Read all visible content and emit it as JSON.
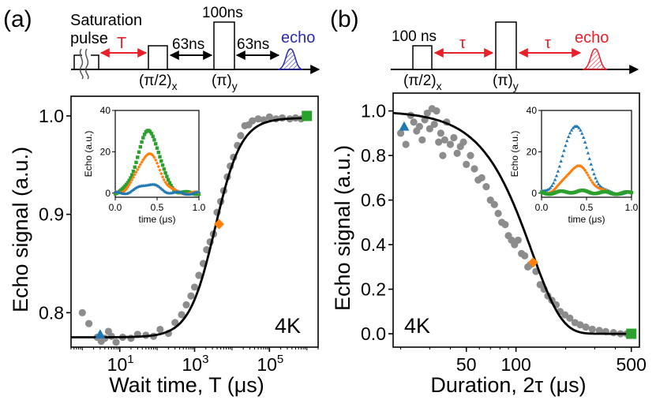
{
  "colors": {
    "data_point": "#8c8c8c",
    "fit_line": "#000000",
    "blue": "#1f77b4",
    "orange": "#ff7f0e",
    "green": "#2ca02c",
    "red": "#e8202a",
    "echo_blue": "#2b2ba8"
  },
  "panel_a": {
    "label": "(a)",
    "diagram": {
      "sat_label_1": "Saturation",
      "sat_label_2": "pulse",
      "T_label": "T",
      "delay_1": "63ns",
      "delay_2": "63ns",
      "pulse_100": "100ns",
      "pi2_label": "(π/2)",
      "pi2_sub": "x",
      "pi_label": "(π)",
      "pi_sub": "y",
      "echo": "echo"
    }
  },
  "panel_b": {
    "label": "(b)",
    "diagram": {
      "pulse_100": "100 ns",
      "tau_1": "τ",
      "tau_2": "τ",
      "pi2_label": "(π/2)",
      "pi2_sub": "x",
      "pi_label": "(π)",
      "pi_sub": "y",
      "echo": "echo"
    }
  },
  "chart_data": [
    {
      "id": "a_main",
      "type": "scatter",
      "xlabel": "Wait time, T (μs)",
      "ylabel": "Echo signal (a.u.)",
      "xscale": "log",
      "xlim": [
        0.5,
        2000000
      ],
      "ylim": [
        0.765,
        1.02
      ],
      "xticks": [
        {
          "v": 10,
          "base": "10",
          "exp": "1"
        },
        {
          "v": 1000,
          "base": "10",
          "exp": "3"
        },
        {
          "v": 100000,
          "base": "10",
          "exp": "5"
        }
      ],
      "yticks": [
        {
          "v": 0.8,
          "label": "0.8"
        },
        {
          "v": 0.9,
          "label": "0.9"
        },
        {
          "v": 1.0,
          "label": "1.0"
        }
      ],
      "annotation": "4K",
      "fit": {
        "model": "sigmoid_log",
        "low": 0.775,
        "high": 0.998,
        "center_log10": 3.55,
        "width_log10": 0.35
      },
      "markers": [
        {
          "name": "blue-triangle",
          "shape": "triangle",
          "color": "blue",
          "x": 3,
          "y": 0.778
        },
        {
          "name": "orange-diamond",
          "shape": "diamond",
          "color": "orange",
          "x": 4500,
          "y": 0.89
        },
        {
          "name": "green-square",
          "shape": "square",
          "color": "green",
          "x": 1000000,
          "y": 1.0
        }
      ],
      "points": [
        [
          1,
          0.8
        ],
        [
          1.5,
          0.789
        ],
        [
          2.5,
          0.775
        ],
        [
          3.2,
          0.771
        ],
        [
          4,
          0.774
        ],
        [
          5,
          0.781
        ],
        [
          6,
          0.776
        ],
        [
          8,
          0.77
        ],
        [
          12,
          0.775
        ],
        [
          20,
          0.774
        ],
        [
          30,
          0.778
        ],
        [
          50,
          0.777
        ],
        [
          80,
          0.776
        ],
        [
          120,
          0.783
        ],
        [
          200,
          0.779
        ],
        [
          300,
          0.79
        ],
        [
          450,
          0.798
        ],
        [
          600,
          0.808
        ],
        [
          800,
          0.817
        ],
        [
          1000,
          0.826
        ],
        [
          1300,
          0.838
        ],
        [
          1700,
          0.85
        ],
        [
          2100,
          0.864
        ],
        [
          2600,
          0.872
        ],
        [
          3200,
          0.88
        ],
        [
          4000,
          0.902
        ],
        [
          5000,
          0.913
        ],
        [
          6000,
          0.924
        ],
        [
          7500,
          0.938
        ],
        [
          9000,
          0.949
        ],
        [
          11000,
          0.958
        ],
        [
          14000,
          0.97
        ],
        [
          17000,
          0.98
        ],
        [
          22000,
          0.99
        ],
        [
          28000,
          0.991
        ],
        [
          35000,
          0.995
        ],
        [
          50000,
          0.997
        ],
        [
          70000,
          0.996
        ],
        [
          100000,
          0.999
        ],
        [
          150000,
          0.997
        ],
        [
          220000,
          0.998
        ],
        [
          350000,
          0.997
        ],
        [
          500000,
          0.998
        ],
        [
          700000,
          0.997
        ]
      ],
      "inset": {
        "xlabel": "time (μs)",
        "ylabel": "Echo (a.u.)",
        "xlim": [
          0,
          1
        ],
        "ylim": [
          -2,
          40
        ],
        "xticks": [
          {
            "v": 0,
            "label": "0.0"
          },
          {
            "v": 0.5,
            "label": "0.5"
          },
          {
            "v": 1,
            "label": "1.0"
          }
        ],
        "yticks": [
          {
            "v": 0,
            "label": "0"
          },
          {
            "v": 20,
            "label": "20"
          },
          {
            "v": 40,
            "label": "40"
          }
        ],
        "series": [
          {
            "name": "green",
            "marker": "square",
            "color": "green",
            "amp": 30,
            "center": 0.4,
            "sigma": 0.13
          },
          {
            "name": "orange",
            "marker": "diamond",
            "color": "orange",
            "amp": 19,
            "center": 0.4,
            "sigma": 0.13
          },
          {
            "name": "blue",
            "marker": "triangle",
            "color": "blue",
            "amp": 4.5,
            "center": 0.4,
            "sigma": 0.12
          }
        ]
      }
    },
    {
      "id": "b_main",
      "type": "scatter",
      "xlabel": "Duration, 2τ (μs)",
      "ylabel": "Echo signal (a.u.)",
      "xscale": "log",
      "xlim": [
        18,
        560
      ],
      "ylim": [
        -0.06,
        1.08
      ],
      "xticks": [
        {
          "v": 50,
          "label": "50"
        },
        {
          "v": 100,
          "label": "100"
        },
        {
          "v": 500,
          "label": "500"
        }
      ],
      "yticks": [
        {
          "v": 0,
          "label": "0.0"
        },
        {
          "v": 0.2,
          "label": "0.2"
        },
        {
          "v": 0.4,
          "label": "0.4"
        },
        {
          "v": 0.6,
          "label": "0.6"
        },
        {
          "v": 0.8,
          "label": "0.8"
        },
        {
          "v": 1.0,
          "label": "1.0"
        }
      ],
      "annotation": "4K",
      "fit": {
        "model": "stretched_exp",
        "T": 125,
        "n": 2.4
      },
      "markers": [
        {
          "name": "blue-triangle",
          "shape": "triangle",
          "color": "blue",
          "x": 21,
          "y": 0.93
        },
        {
          "name": "orange-diamond",
          "shape": "diamond",
          "color": "orange",
          "x": 127,
          "y": 0.32
        },
        {
          "name": "green-square",
          "shape": "square",
          "color": "green",
          "x": 500,
          "y": 0.0
        }
      ],
      "points": [
        [
          20,
          0.9
        ],
        [
          21.5,
          0.85
        ],
        [
          23,
          0.98
        ],
        [
          24,
          0.95
        ],
        [
          25,
          0.91
        ],
        [
          26,
          0.93
        ],
        [
          27,
          0.87
        ],
        [
          28,
          0.96
        ],
        [
          29,
          0.99
        ],
        [
          30,
          0.92
        ],
        [
          31,
          1.01
        ],
        [
          32,
          0.94
        ],
        [
          33,
          1.0
        ],
        [
          34,
          0.86
        ],
        [
          35,
          0.9
        ],
        [
          36,
          0.8
        ],
        [
          37,
          0.87
        ],
        [
          38,
          0.95
        ],
        [
          40,
          0.85
        ],
        [
          42,
          0.88
        ],
        [
          44,
          0.81
        ],
        [
          46,
          0.84
        ],
        [
          48,
          0.86
        ],
        [
          50,
          0.76
        ],
        [
          53,
          0.8
        ],
        [
          56,
          0.74
        ],
        [
          59,
          0.69
        ],
        [
          62,
          0.7
        ],
        [
          66,
          0.66
        ],
        [
          70,
          0.6
        ],
        [
          74,
          0.58
        ],
        [
          78,
          0.54
        ],
        [
          82,
          0.5
        ],
        [
          86,
          0.49
        ],
        [
          90,
          0.44
        ],
        [
          94,
          0.42
        ],
        [
          98,
          0.4
        ],
        [
          103,
          0.42
        ],
        [
          108,
          0.36
        ],
        [
          113,
          0.35
        ],
        [
          118,
          0.3
        ],
        [
          122,
          0.31
        ],
        [
          132,
          0.28
        ],
        [
          140,
          0.22
        ],
        [
          148,
          0.2
        ],
        [
          156,
          0.17
        ],
        [
          165,
          0.15
        ],
        [
          175,
          0.13
        ],
        [
          185,
          0.1
        ],
        [
          198,
          0.085
        ],
        [
          212,
          0.07
        ],
        [
          228,
          0.05
        ],
        [
          245,
          0.04
        ],
        [
          265,
          0.03
        ],
        [
          290,
          0.02
        ],
        [
          320,
          0.015
        ],
        [
          350,
          0.01
        ],
        [
          390,
          0.005
        ],
        [
          430,
          0.0
        ],
        [
          470,
          0.0
        ]
      ],
      "inset": {
        "xlabel": "time (μs)",
        "ylabel": "Echo (a.u.)",
        "xlim": [
          0,
          1
        ],
        "ylim": [
          -2,
          40
        ],
        "xticks": [
          {
            "v": 0,
            "label": "0.0"
          },
          {
            "v": 0.5,
            "label": "0.5"
          },
          {
            "v": 1,
            "label": "1.0"
          }
        ],
        "yticks": [
          {
            "v": 0,
            "label": "0"
          },
          {
            "v": 20,
            "label": "20"
          },
          {
            "v": 40,
            "label": "40"
          }
        ],
        "series": [
          {
            "name": "blue",
            "marker": "triangle",
            "color": "blue",
            "amp": 33,
            "center": 0.38,
            "sigma": 0.13
          },
          {
            "name": "orange",
            "marker": "diamond",
            "color": "orange",
            "amp": 13,
            "center": 0.4,
            "sigma": 0.13
          },
          {
            "name": "green",
            "marker": "square",
            "color": "green",
            "amp": 0.8,
            "center": 0.4,
            "sigma": 0.15
          }
        ]
      }
    }
  ]
}
